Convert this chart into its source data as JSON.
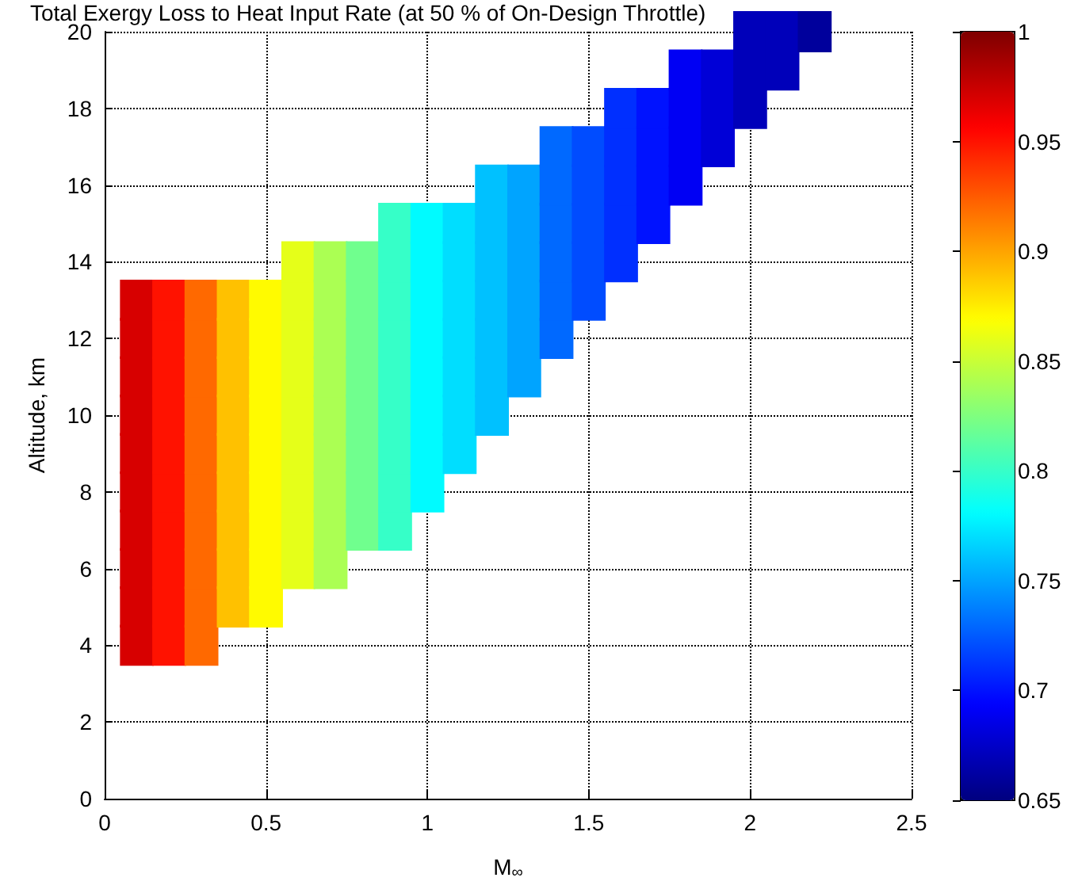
{
  "chart_data": {
    "type": "scatter",
    "title": "Total Exergy Loss to Heat Input Rate (at 50 % of On-Design Throttle)",
    "xlabel": "M$_{∞}$",
    "ylabel": "Altitude, km",
    "xlim": [
      0,
      2.5
    ],
    "xticks": [
      0,
      0.5,
      1,
      1.5,
      2,
      2.5
    ],
    "ylim": [
      0,
      20
    ],
    "yticks": [
      0,
      2,
      4,
      6,
      8,
      10,
      12,
      14,
      16,
      18,
      20
    ],
    "clim": [
      0.65,
      1
    ],
    "cticks": [
      0.65,
      0.7,
      0.75,
      0.8,
      0.85,
      0.9,
      0.95,
      1
    ],
    "grid": true,
    "marker": "square",
    "series": [
      {
        "x": [
          0.1,
          0.1,
          0.1,
          0.1,
          0.1,
          0.1,
          0.1,
          0.1,
          0.1,
          0.1
        ],
        "values": [
          4,
          5,
          6,
          7,
          8,
          9,
          10,
          11,
          12,
          13
        ],
        "cvalues": [
          0.97,
          0.97,
          0.97,
          0.97,
          0.97,
          0.97,
          0.97,
          0.97,
          0.97,
          0.97
        ]
      },
      {
        "x": [
          0.2,
          0.2,
          0.2,
          0.2,
          0.2,
          0.2,
          0.2,
          0.2,
          0.2,
          0.2
        ],
        "values": [
          4,
          5,
          6,
          7,
          8,
          9,
          10,
          11,
          12,
          13
        ],
        "cvalues": [
          0.95,
          0.95,
          0.95,
          0.95,
          0.95,
          0.95,
          0.95,
          0.95,
          0.95,
          0.95
        ]
      },
      {
        "x": [
          0.3,
          0.3,
          0.3,
          0.3,
          0.3,
          0.3,
          0.3,
          0.3,
          0.3,
          0.3
        ],
        "values": [
          4,
          5,
          6,
          7,
          8,
          9,
          10,
          11,
          12,
          13
        ],
        "cvalues": [
          0.92,
          0.92,
          0.92,
          0.92,
          0.92,
          0.92,
          0.92,
          0.92,
          0.92,
          0.92
        ]
      },
      {
        "x": [
          0.4,
          0.4,
          0.4,
          0.4,
          0.4,
          0.4,
          0.4,
          0.4,
          0.4
        ],
        "values": [
          5,
          6,
          7,
          8,
          9,
          10,
          11,
          12,
          13
        ],
        "cvalues": [
          0.89,
          0.89,
          0.89,
          0.89,
          0.89,
          0.89,
          0.89,
          0.89,
          0.89
        ]
      },
      {
        "x": [
          0.5,
          0.5,
          0.5,
          0.5,
          0.5,
          0.5,
          0.5,
          0.5,
          0.5
        ],
        "values": [
          5,
          6,
          7,
          8,
          9,
          10,
          11,
          12,
          13
        ],
        "cvalues": [
          0.87,
          0.87,
          0.87,
          0.87,
          0.87,
          0.87,
          0.87,
          0.87,
          0.87
        ]
      },
      {
        "x": [
          0.6,
          0.6,
          0.6,
          0.6,
          0.6,
          0.6,
          0.6,
          0.6,
          0.6
        ],
        "values": [
          6,
          7,
          8,
          9,
          10,
          11,
          12,
          13,
          14
        ],
        "cvalues": [
          0.86,
          0.86,
          0.86,
          0.86,
          0.86,
          0.86,
          0.86,
          0.86,
          0.86
        ]
      },
      {
        "x": [
          0.7,
          0.7,
          0.7,
          0.7,
          0.7,
          0.7,
          0.7,
          0.7,
          0.7
        ],
        "values": [
          6,
          7,
          8,
          9,
          10,
          11,
          12,
          13,
          14
        ],
        "cvalues": [
          0.84,
          0.84,
          0.84,
          0.84,
          0.84,
          0.84,
          0.84,
          0.84,
          0.84
        ]
      },
      {
        "x": [
          0.8,
          0.8,
          0.8,
          0.8,
          0.8,
          0.8,
          0.8,
          0.8
        ],
        "values": [
          7,
          8,
          9,
          10,
          11,
          12,
          13,
          14
        ],
        "cvalues": [
          0.82,
          0.82,
          0.82,
          0.82,
          0.82,
          0.82,
          0.82,
          0.82
        ]
      },
      {
        "x": [
          0.9,
          0.9,
          0.9,
          0.9,
          0.9,
          0.9,
          0.9,
          0.9,
          0.9
        ],
        "values": [
          7,
          8,
          9,
          10,
          11,
          12,
          13,
          14,
          15
        ],
        "cvalues": [
          0.8,
          0.8,
          0.8,
          0.8,
          0.8,
          0.8,
          0.8,
          0.8,
          0.8
        ]
      },
      {
        "x": [
          1,
          1,
          1,
          1,
          1,
          1,
          1,
          1
        ],
        "values": [
          8,
          9,
          10,
          11,
          12,
          13,
          14,
          15
        ],
        "cvalues": [
          0.78,
          0.78,
          0.78,
          0.78,
          0.78,
          0.78,
          0.78,
          0.78
        ]
      },
      {
        "x": [
          1.1,
          1.1,
          1.1,
          1.1,
          1.1,
          1.1,
          1.1
        ],
        "values": [
          9,
          10,
          11,
          12,
          13,
          14,
          15
        ],
        "cvalues": [
          0.77,
          0.77,
          0.77,
          0.77,
          0.77,
          0.77,
          0.77
        ]
      },
      {
        "x": [
          1.2,
          1.2,
          1.2,
          1.2,
          1.2,
          1.2,
          1.2
        ],
        "values": [
          10,
          11,
          12,
          13,
          14,
          15,
          16
        ],
        "cvalues": [
          0.76,
          0.76,
          0.76,
          0.76,
          0.76,
          0.76,
          0.76
        ]
      },
      {
        "x": [
          1.3,
          1.3,
          1.3,
          1.3,
          1.3,
          1.3
        ],
        "values": [
          11,
          12,
          13,
          14,
          15,
          16
        ],
        "cvalues": [
          0.75,
          0.75,
          0.75,
          0.75,
          0.75,
          0.75
        ]
      },
      {
        "x": [
          1.4,
          1.4,
          1.4,
          1.4,
          1.4,
          1.4
        ],
        "values": [
          12,
          13,
          14,
          15,
          16,
          17
        ],
        "cvalues": [
          0.73,
          0.73,
          0.73,
          0.73,
          0.73,
          0.73
        ]
      },
      {
        "x": [
          1.5,
          1.5,
          1.5,
          1.5,
          1.5
        ],
        "values": [
          13,
          14,
          15,
          16,
          17
        ],
        "cvalues": [
          0.72,
          0.72,
          0.72,
          0.72,
          0.72
        ]
      },
      {
        "x": [
          1.6,
          1.6,
          1.6,
          1.6,
          1.6
        ],
        "values": [
          14,
          15,
          16,
          17,
          18
        ],
        "cvalues": [
          0.71,
          0.71,
          0.71,
          0.71,
          0.71
        ]
      },
      {
        "x": [
          1.7,
          1.7,
          1.7,
          1.7
        ],
        "values": [
          15,
          16,
          17,
          18
        ],
        "cvalues": [
          0.7,
          0.7,
          0.7,
          0.7
        ]
      },
      {
        "x": [
          1.8,
          1.8,
          1.8,
          1.8
        ],
        "values": [
          16,
          17,
          18,
          19
        ],
        "cvalues": [
          0.69,
          0.69,
          0.69,
          0.69
        ]
      },
      {
        "x": [
          1.9,
          1.9,
          1.9
        ],
        "values": [
          17,
          18,
          19
        ],
        "cvalues": [
          0.68,
          0.68,
          0.68
        ]
      },
      {
        "x": [
          2,
          2,
          2
        ],
        "values": [
          18,
          19,
          20
        ],
        "cvalues": [
          0.67,
          0.67,
          0.67
        ]
      },
      {
        "x": [
          2.1,
          2.1
        ],
        "values": [
          19,
          20
        ],
        "cvalues": [
          0.67,
          0.67
        ]
      },
      {
        "x": [
          2.2
        ],
        "values": [
          20
        ],
        "cvalues": [
          0.66
        ]
      }
    ]
  }
}
